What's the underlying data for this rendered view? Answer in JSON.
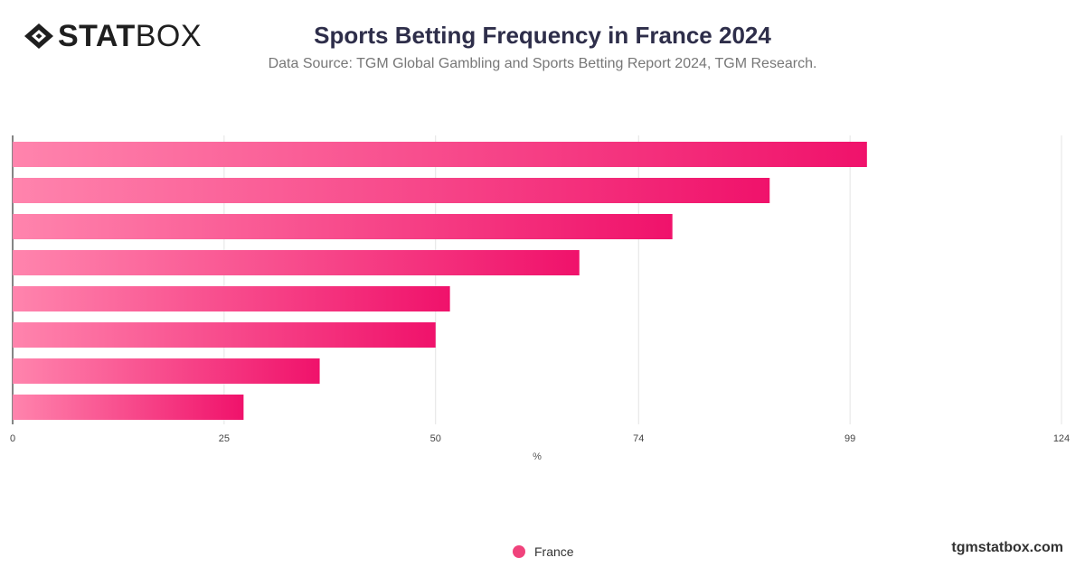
{
  "brand": {
    "logo_bold": "STAT",
    "logo_light": "BOX",
    "site": "tgmstatbox.com"
  },
  "colors": {
    "bar_start": "#ff84ad",
    "bar_end": "#f0126b",
    "grid": "#e4e4e4",
    "axis": "#333333"
  },
  "chart_data": {
    "type": "bar",
    "orientation": "horizontal",
    "title": "Sports Betting Frequency in France 2024",
    "subtitle": "Data Source: TGM Global Gambling and Sports Betting Report 2024, TGM Research.",
    "xlabel": "%",
    "ylabel": "",
    "xlim": [
      0,
      124
    ],
    "xticks": [
      0,
      25,
      50,
      74,
      99,
      124
    ],
    "grid": true,
    "legend_position": "bottom",
    "series": [
      {
        "name": "France",
        "values": [
          101,
          89.5,
          78,
          67,
          51.7,
          50,
          36.3,
          27.3
        ]
      }
    ]
  },
  "legend": {
    "items": [
      {
        "label": "France",
        "color": "#f0437c"
      }
    ]
  }
}
